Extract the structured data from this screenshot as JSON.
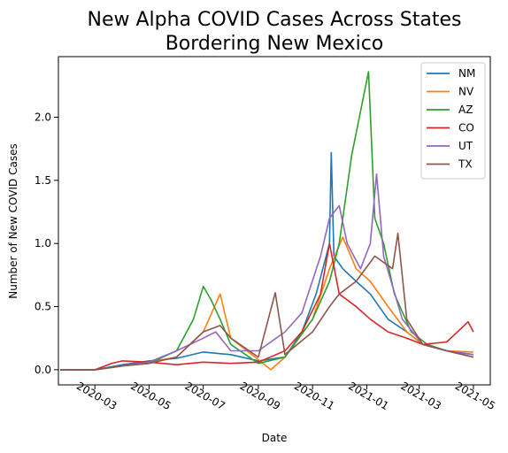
{
  "chart_data": {
    "type": "line",
    "title_lines": [
      "New Alpha COVID Cases Across States",
      "Bordering New Mexico"
    ],
    "xlabel": "Date",
    "ylabel": "Number of New COVID Cases",
    "xlim": [
      "2020-01-20",
      "2021-05-20"
    ],
    "ylim": [
      -0.12,
      2.48
    ],
    "x_ticks": [
      "2020-03",
      "2020-05",
      "2020-07",
      "2020-09",
      "2020-11",
      "2021-01",
      "2021-03",
      "2021-05"
    ],
    "y_ticks": [
      "0.0",
      "0.5",
      "1.0",
      "1.5",
      "2.0"
    ],
    "grid": false,
    "legend_position": "top-right",
    "series": [
      {
        "name": "NM",
        "color": "#1f77b4",
        "points": [
          [
            "2020-01-22",
            0
          ],
          [
            "2020-03-01",
            0
          ],
          [
            "2020-04-01",
            0.04
          ],
          [
            "2020-05-01",
            0.07
          ],
          [
            "2020-06-01",
            0.09
          ],
          [
            "2020-07-01",
            0.14
          ],
          [
            "2020-08-01",
            0.12
          ],
          [
            "2020-09-01",
            0.07
          ],
          [
            "2020-10-01",
            0.1
          ],
          [
            "2020-10-20",
            0.3
          ],
          [
            "2020-11-05",
            0.6
          ],
          [
            "2020-11-20",
            1.0
          ],
          [
            "2020-11-22",
            1.72
          ],
          [
            "2020-11-25",
            0.9
          ],
          [
            "2020-12-05",
            0.8
          ],
          [
            "2020-12-20",
            0.7
          ],
          [
            "2021-01-05",
            0.6
          ],
          [
            "2021-01-25",
            0.4
          ],
          [
            "2021-02-15",
            0.3
          ],
          [
            "2021-03-05",
            0.2
          ],
          [
            "2021-04-01",
            0.15
          ],
          [
            "2021-05-01",
            0.12
          ]
        ]
      },
      {
        "name": "NV",
        "color": "#ff7f0e",
        "points": [
          [
            "2020-01-22",
            0
          ],
          [
            "2020-03-01",
            0
          ],
          [
            "2020-04-01",
            0.03
          ],
          [
            "2020-05-01",
            0.06
          ],
          [
            "2020-06-01",
            0.1
          ],
          [
            "2020-07-01",
            0.3
          ],
          [
            "2020-07-20",
            0.6
          ],
          [
            "2020-08-01",
            0.25
          ],
          [
            "2020-09-01",
            0.08
          ],
          [
            "2020-09-15",
            0.0
          ],
          [
            "2020-10-01",
            0.1
          ],
          [
            "2020-11-01",
            0.4
          ],
          [
            "2020-11-20",
            0.8
          ],
          [
            "2020-12-05",
            1.05
          ],
          [
            "2020-12-20",
            0.8
          ],
          [
            "2021-01-05",
            0.7
          ],
          [
            "2021-01-25",
            0.5
          ],
          [
            "2021-02-15",
            0.3
          ],
          [
            "2021-03-05",
            0.2
          ],
          [
            "2021-04-01",
            0.15
          ],
          [
            "2021-05-01",
            0.14
          ]
        ]
      },
      {
        "name": "AZ",
        "color": "#2ca02c",
        "points": [
          [
            "2020-01-22",
            0
          ],
          [
            "2020-03-01",
            0
          ],
          [
            "2020-04-01",
            0.03
          ],
          [
            "2020-05-01",
            0.05
          ],
          [
            "2020-06-01",
            0.15
          ],
          [
            "2020-06-20",
            0.4
          ],
          [
            "2020-07-01",
            0.66
          ],
          [
            "2020-07-10",
            0.55
          ],
          [
            "2020-07-20",
            0.4
          ],
          [
            "2020-08-01",
            0.2
          ],
          [
            "2020-09-01",
            0.05
          ],
          [
            "2020-10-01",
            0.1
          ],
          [
            "2020-11-01",
            0.4
          ],
          [
            "2020-11-20",
            0.7
          ],
          [
            "2020-12-01",
            1.0
          ],
          [
            "2020-12-15",
            1.7
          ],
          [
            "2021-01-03",
            2.36
          ],
          [
            "2021-01-10",
            1.2
          ],
          [
            "2021-01-20",
            1.0
          ],
          [
            "2021-02-01",
            0.6
          ],
          [
            "2021-02-20",
            0.3
          ],
          [
            "2021-03-10",
            0.2
          ],
          [
            "2021-04-01",
            0.15
          ],
          [
            "2021-05-01",
            0.1
          ]
        ]
      },
      {
        "name": "CO",
        "color": "#d62728",
        "points": [
          [
            "2020-01-22",
            0
          ],
          [
            "2020-03-01",
            0
          ],
          [
            "2020-03-20",
            0.05
          ],
          [
            "2020-04-01",
            0.07
          ],
          [
            "2020-05-01",
            0.06
          ],
          [
            "2020-06-01",
            0.04
          ],
          [
            "2020-07-01",
            0.06
          ],
          [
            "2020-08-01",
            0.05
          ],
          [
            "2020-09-01",
            0.06
          ],
          [
            "2020-10-01",
            0.15
          ],
          [
            "2020-10-20",
            0.3
          ],
          [
            "2020-11-10",
            0.6
          ],
          [
            "2020-11-20",
            1.0
          ],
          [
            "2020-12-01",
            0.6
          ],
          [
            "2020-12-20",
            0.5
          ],
          [
            "2021-01-05",
            0.4
          ],
          [
            "2021-01-25",
            0.3
          ],
          [
            "2021-02-15",
            0.25
          ],
          [
            "2021-03-05",
            0.2
          ],
          [
            "2021-04-01",
            0.22
          ],
          [
            "2021-04-25",
            0.38
          ],
          [
            "2021-05-01",
            0.3
          ]
        ]
      },
      {
        "name": "UT",
        "color": "#9467bd",
        "points": [
          [
            "2020-01-22",
            0
          ],
          [
            "2020-03-01",
            0
          ],
          [
            "2020-04-01",
            0.03
          ],
          [
            "2020-05-01",
            0.06
          ],
          [
            "2020-06-01",
            0.15
          ],
          [
            "2020-07-01",
            0.25
          ],
          [
            "2020-07-15",
            0.3
          ],
          [
            "2020-08-01",
            0.15
          ],
          [
            "2020-09-01",
            0.15
          ],
          [
            "2020-10-01",
            0.3
          ],
          [
            "2020-10-20",
            0.45
          ],
          [
            "2020-11-10",
            0.9
          ],
          [
            "2020-11-20",
            1.2
          ],
          [
            "2020-12-01",
            1.3
          ],
          [
            "2020-12-10",
            1.0
          ],
          [
            "2020-12-25",
            0.8
          ],
          [
            "2021-01-05",
            1.0
          ],
          [
            "2021-01-12",
            1.55
          ],
          [
            "2021-01-20",
            0.9
          ],
          [
            "2021-02-10",
            0.4
          ],
          [
            "2021-03-05",
            0.2
          ],
          [
            "2021-04-01",
            0.15
          ],
          [
            "2021-05-01",
            0.12
          ]
        ]
      },
      {
        "name": "TX",
        "color": "#8c564b",
        "points": [
          [
            "2020-01-22",
            0
          ],
          [
            "2020-03-01",
            0
          ],
          [
            "2020-04-01",
            0.03
          ],
          [
            "2020-05-01",
            0.05
          ],
          [
            "2020-06-01",
            0.1
          ],
          [
            "2020-07-01",
            0.3
          ],
          [
            "2020-07-20",
            0.35
          ],
          [
            "2020-08-01",
            0.25
          ],
          [
            "2020-09-01",
            0.1
          ],
          [
            "2020-09-20",
            0.61
          ],
          [
            "2020-10-01",
            0.12
          ],
          [
            "2020-11-01",
            0.3
          ],
          [
            "2020-11-20",
            0.5
          ],
          [
            "2020-12-01",
            0.6
          ],
          [
            "2020-12-20",
            0.7
          ],
          [
            "2021-01-10",
            0.9
          ],
          [
            "2021-01-30",
            0.8
          ],
          [
            "2021-02-05",
            1.08
          ],
          [
            "2021-02-15",
            0.4
          ],
          [
            "2021-03-05",
            0.2
          ],
          [
            "2021-04-01",
            0.15
          ],
          [
            "2021-05-01",
            0.1
          ]
        ]
      }
    ]
  }
}
